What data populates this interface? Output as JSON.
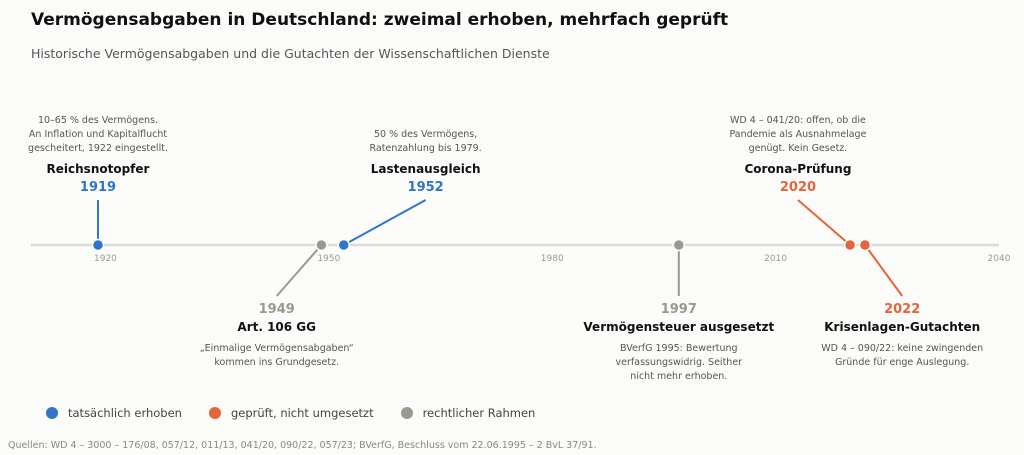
{
  "title": "Vermögensabgaben in Deutschland: zweimal erhoben, mehrfach geprüft",
  "subtitle": "Historische Vermögensabgaben und die Gutachten der Wissenschaftlichen Dienste",
  "source": "Quellen: WD 4 – 3000 – 176/08, 057/12, 011/13, 041/20, 090/22, 057/23; BVerfG, Beschluss vom 22.06.1995 – 2 BvL 37/91.",
  "colors": {
    "erhoben": "#2f75c9",
    "geprueft": "#e5643a",
    "rahmen": "#999990",
    "axis": "#dcdcda",
    "tick": "#999999",
    "desc": "#555555",
    "label": "#111111"
  },
  "legend": [
    {
      "label": "tatsächlich erhoben",
      "category": "erhoben"
    },
    {
      "label": "geprüft, nicht umgesetzt",
      "category": "geprueft"
    },
    {
      "label": "rechtlicher Rahmen",
      "category": "rahmen"
    }
  ],
  "chart_data": {
    "type": "timeline",
    "xlim": [
      1910,
      2040
    ],
    "ticks": [
      "1920",
      "1950",
      "1980",
      "2010",
      "2040"
    ],
    "grid": false,
    "legend_position": "bottom-left",
    "events": [
      {
        "year": 1919,
        "year_label": "1919",
        "category": "erhoben",
        "position": "above",
        "label_year": 1919,
        "name": "Reichsnotopfer",
        "lines": [
          "10–65 % des Vermögens.",
          "An Inflation und Kapitalflucht",
          "gescheitert, 1922 eingestellt."
        ]
      },
      {
        "year": 1949,
        "year_label": "1949",
        "category": "rahmen",
        "position": "below",
        "label_year": 1943,
        "name": "Art. 106 GG",
        "lines": [
          "„Einmalige Vermögensabgaben“",
          "kommen ins Grundgesetz."
        ]
      },
      {
        "year": 1952,
        "year_label": "1952",
        "category": "erhoben",
        "position": "above",
        "label_year": 1963,
        "name": "Lastenausgleich",
        "lines": [
          "50 % des Vermögens,",
          "Ratenzahlung bis 1979."
        ]
      },
      {
        "year": 1997,
        "year_label": "1997",
        "category": "rahmen",
        "position": "below",
        "label_year": 1997,
        "name": "Vermögensteuer ausgesetzt",
        "lines": [
          "BVerfG 1995: Bewertung",
          "verfassungswidrig. Seither",
          "nicht mehr erhoben."
        ]
      },
      {
        "year": 2020,
        "year_label": "2020",
        "category": "geprueft",
        "position": "above",
        "label_year": 2013,
        "name": "Corona-Prüfung",
        "lines": [
          "WD 4 – 041/20: offen, ob die",
          "Pandemie als Ausnahmelage",
          "genügt. Kein Gesetz."
        ]
      },
      {
        "year": 2022,
        "year_label": "2022",
        "category": "geprueft",
        "position": "below",
        "label_year": 2027,
        "name": "Krisenlagen-Gutachten",
        "lines": [
          "WD 4 – 090/22: keine zwingenden",
          "Gründe für enge Auslegung."
        ]
      }
    ]
  }
}
